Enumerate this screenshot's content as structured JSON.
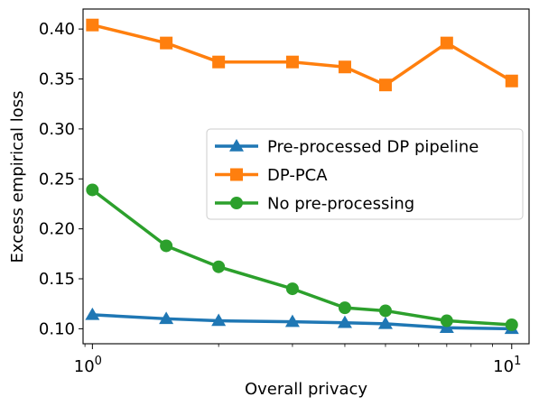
{
  "chart_data": {
    "type": "line",
    "xlabel": "Overall privacy",
    "ylabel": "Excess empirical loss",
    "xscale": "log",
    "xlim": [
      0.95,
      11
    ],
    "ylim": [
      0.085,
      0.42
    ],
    "xticks": [
      {
        "value": 1,
        "base": "10",
        "exp": "0"
      },
      {
        "value": 10,
        "base": "10",
        "exp": "1"
      }
    ],
    "yticks": [
      {
        "value": 0.1,
        "label": "0.10"
      },
      {
        "value": 0.15,
        "label": "0.15"
      },
      {
        "value": 0.2,
        "label": "0.20"
      },
      {
        "value": 0.25,
        "label": "0.25"
      },
      {
        "value": 0.3,
        "label": "0.30"
      },
      {
        "value": 0.35,
        "label": "0.35"
      },
      {
        "value": 0.4,
        "label": "0.40"
      }
    ],
    "grid": false,
    "legend_position": "center-right",
    "x": [
      1,
      1.5,
      2,
      3,
      4,
      5,
      7,
      10
    ],
    "series": [
      {
        "name": "Pre-processed DP pipeline",
        "color": "#1f77b4",
        "marker": "triangle",
        "values": [
          0.114,
          0.11,
          0.108,
          0.107,
          0.106,
          0.105,
          0.101,
          0.1
        ]
      },
      {
        "name": "DP-PCA",
        "color": "#ff7f0e",
        "marker": "square",
        "values": [
          0.404,
          0.386,
          0.367,
          0.367,
          0.362,
          0.344,
          0.386,
          0.348
        ]
      },
      {
        "name": "No pre-processing",
        "color": "#2ca02c",
        "marker": "circle",
        "values": [
          0.239,
          0.183,
          0.162,
          0.14,
          0.121,
          0.118,
          0.108,
          0.104
        ]
      }
    ]
  }
}
